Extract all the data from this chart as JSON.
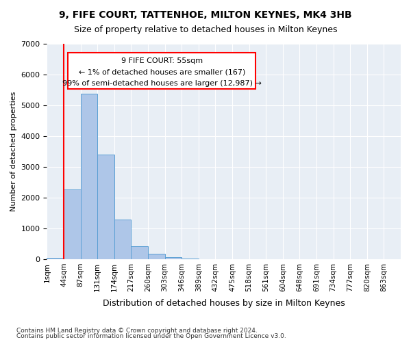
{
  "title1": "9, FIFE COURT, TATTENHOE, MILTON KEYNES, MK4 3HB",
  "title2": "Size of property relative to detached houses in Milton Keynes",
  "xlabel": "Distribution of detached houses by size in Milton Keynes",
  "ylabel": "Number of detached properties",
  "footnote1": "Contains HM Land Registry data © Crown copyright and database right 2024.",
  "footnote2": "Contains public sector information licensed under the Open Government Licence v3.0.",
  "annotation_line1": "9 FIFE COURT: 55sqm",
  "annotation_line2": "← 1% of detached houses are smaller (167)",
  "annotation_line3": "99% of semi-detached houses are larger (12,987) →",
  "bin_labels": [
    "1sqm",
    "44sqm",
    "87sqm",
    "131sqm",
    "174sqm",
    "217sqm",
    "260sqm",
    "303sqm",
    "346sqm",
    "389sqm",
    "432sqm",
    "475sqm",
    "518sqm",
    "561sqm",
    "604sqm",
    "648sqm",
    "691sqm",
    "734sqm",
    "777sqm",
    "820sqm",
    "863sqm"
  ],
  "bar_values": [
    50,
    2270,
    5380,
    3390,
    1280,
    430,
    170,
    60,
    10,
    0,
    0,
    0,
    0,
    0,
    0,
    0,
    0,
    0,
    0,
    0
  ],
  "bar_color": "#aec6e8",
  "bar_edge_color": "#5a9fd4",
  "red_line_x": 1,
  "ylim": [
    0,
    7000
  ],
  "yticks": [
    0,
    1000,
    2000,
    3000,
    4000,
    5000,
    6000,
    7000
  ],
  "bg_color": "#e8eef5",
  "grid_color": "#ffffff"
}
